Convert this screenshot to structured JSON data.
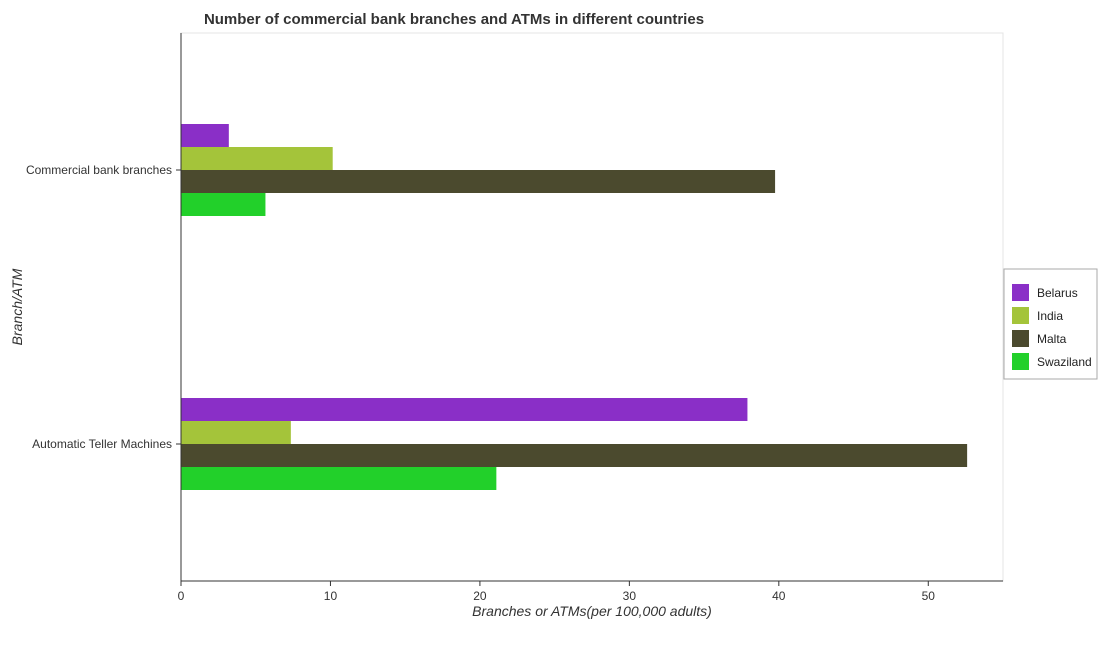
{
  "chart_data": {
    "type": "bar",
    "orientation": "horizontal",
    "title": "Number of commercial bank branches and ATMs in different countries",
    "xlabel": "Branches or ATMs(per 100,000 adults)",
    "ylabel": "Branch/ATM",
    "xlim": [
      0,
      55
    ],
    "xticks": [
      0,
      10,
      20,
      30,
      40,
      50
    ],
    "categories": [
      "Commercial bank branches",
      "Automatic Teller Machines"
    ],
    "series": [
      {
        "name": "Belarus",
        "color": "#8a2fc7",
        "values": [
          3.2,
          37.9
        ]
      },
      {
        "name": "India",
        "color": "#a4c43a",
        "values": [
          10.15,
          7.35
        ]
      },
      {
        "name": "Malta",
        "color": "#4b4a2e",
        "values": [
          39.75,
          52.6
        ]
      },
      {
        "name": "Swaziland",
        "color": "#22d02a",
        "values": [
          5.65,
          21.1
        ]
      }
    ],
    "legend_position": "right",
    "grid": false
  }
}
